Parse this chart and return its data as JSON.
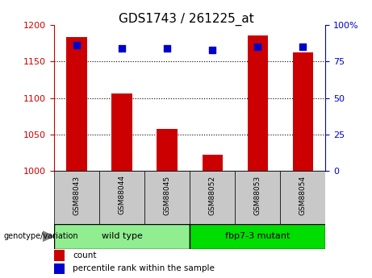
{
  "title": "GDS1743 / 261225_at",
  "samples": [
    "GSM88043",
    "GSM88044",
    "GSM88045",
    "GSM88052",
    "GSM88053",
    "GSM88054"
  ],
  "count_values": [
    1183,
    1106,
    1058,
    1022,
    1186,
    1163
  ],
  "percentile_values": [
    86,
    84,
    84,
    83,
    85,
    85
  ],
  "ylim_left": [
    1000,
    1200
  ],
  "ylim_right": [
    0,
    100
  ],
  "yticks_left": [
    1000,
    1050,
    1100,
    1150,
    1200
  ],
  "yticks_right": [
    0,
    25,
    50,
    75,
    100
  ],
  "ytick_labels_right": [
    "0",
    "25",
    "50",
    "75",
    "100%"
  ],
  "grid_values": [
    1050,
    1100,
    1150
  ],
  "bar_color": "#cc0000",
  "dot_color": "#0000cc",
  "groups": [
    {
      "label": "wild type",
      "color": "#90ee90",
      "start": 0,
      "end": 3
    },
    {
      "label": "fbp7-3 mutant",
      "color": "#00dd00",
      "start": 3,
      "end": 6
    }
  ],
  "group_label": "genotype/variation",
  "legend_count_label": "count",
  "legend_percentile_label": "percentile rank within the sample",
  "bar_color_left": "#cc0000",
  "tick_color_right": "#0000cc",
  "bar_width": 0.45,
  "dot_size": 35,
  "sample_box_color": "#c8c8c8"
}
